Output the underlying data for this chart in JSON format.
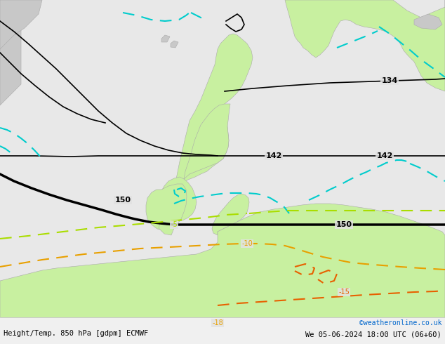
{
  "title_left": "Height/Temp. 850 hPa [gdpm] ECMWF",
  "title_right": "We 05-06-2024 18:00 UTC (06+60)",
  "credit": "©weatheronline.co.uk",
  "bg_color": "#e8e8e8",
  "ocean_color": "#e2e2e2",
  "land_gray": "#c8c8c8",
  "land_warm_green": "#c8f0a0",
  "font_color_left": "#000000",
  "font_color_right": "#000000",
  "font_color_credit": "#0066cc",
  "fig_width": 6.34,
  "fig_height": 4.9
}
